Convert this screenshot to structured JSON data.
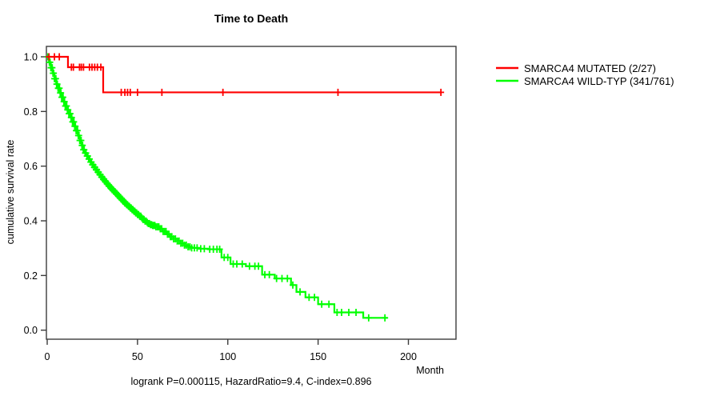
{
  "chart_data": {
    "type": "line",
    "subtype": "kaplan_meier_survival",
    "title": "Time to Death",
    "xlabel": "Month",
    "ylabel": "cumulative survival rate",
    "annotation": "logrank P=0.000115, HazardRatio=9.4, C-index=0.896",
    "x_ticks": [
      0,
      50,
      100,
      150,
      200
    ],
    "y_ticks": [
      0.0,
      0.2,
      0.4,
      0.6,
      0.8,
      1.0
    ],
    "xlim": [
      0,
      227
    ],
    "ylim": [
      0,
      1.04
    ],
    "grid": false,
    "legend_position": "right-outside",
    "series": [
      {
        "name": "SMARCA4 MUTATED (2/27)",
        "color": "#ff0000",
        "steps": [
          [
            0,
            1.0
          ],
          [
            11.5,
            0.962
          ],
          [
            31,
            0.87
          ],
          [
            218,
            0.87
          ]
        ],
        "censors": [
          1,
          4,
          6.7,
          13.4,
          14.5,
          17.9,
          18.9,
          20.1,
          23.4,
          24.8,
          26.3,
          27.8,
          29.7,
          41,
          43,
          44.5,
          46,
          50,
          63.5,
          97.3,
          161,
          218
        ]
      },
      {
        "name": "SMARCA4 WILD-TYP (341/761)",
        "color": "#00ff00",
        "steps": [
          [
            0,
            1.0
          ],
          [
            1,
            0.98
          ],
          [
            2,
            0.96
          ],
          [
            3,
            0.94
          ],
          [
            4,
            0.92
          ],
          [
            5,
            0.9
          ],
          [
            6,
            0.885
          ],
          [
            7,
            0.868
          ],
          [
            8,
            0.852
          ],
          [
            9,
            0.836
          ],
          [
            10,
            0.82
          ],
          [
            11,
            0.806
          ],
          [
            12,
            0.792
          ],
          [
            13,
            0.778
          ],
          [
            14,
            0.762
          ],
          [
            15,
            0.746
          ],
          [
            16,
            0.73
          ],
          [
            17,
            0.712
          ],
          [
            18,
            0.694
          ],
          [
            19,
            0.676
          ],
          [
            20,
            0.66
          ],
          [
            21,
            0.648
          ],
          [
            22,
            0.637
          ],
          [
            23,
            0.626
          ],
          [
            24,
            0.615
          ],
          [
            25,
            0.605
          ],
          [
            26,
            0.596
          ],
          [
            27,
            0.587
          ],
          [
            28,
            0.578
          ],
          [
            29,
            0.569
          ],
          [
            30,
            0.56
          ],
          [
            31,
            0.552
          ],
          [
            32,
            0.544
          ],
          [
            33,
            0.536
          ],
          [
            34,
            0.528
          ],
          [
            35,
            0.521
          ],
          [
            36,
            0.514
          ],
          [
            37,
            0.507
          ],
          [
            38,
            0.5
          ],
          [
            39,
            0.493
          ],
          [
            40,
            0.486
          ],
          [
            41,
            0.479
          ],
          [
            42,
            0.472
          ],
          [
            43,
            0.465
          ],
          [
            44,
            0.459
          ],
          [
            45,
            0.453
          ],
          [
            46,
            0.447
          ],
          [
            47,
            0.441
          ],
          [
            48,
            0.435
          ],
          [
            49,
            0.429
          ],
          [
            50,
            0.423
          ],
          [
            51,
            0.417
          ],
          [
            52,
            0.411
          ],
          [
            53,
            0.405
          ],
          [
            54,
            0.399
          ],
          [
            55,
            0.394
          ],
          [
            56,
            0.39
          ],
          [
            57,
            0.386
          ],
          [
            58,
            0.383
          ],
          [
            60,
            0.378
          ],
          [
            62,
            0.371
          ],
          [
            64,
            0.361
          ],
          [
            66,
            0.351
          ],
          [
            68,
            0.342
          ],
          [
            70,
            0.334
          ],
          [
            72,
            0.326
          ],
          [
            74,
            0.318
          ],
          [
            76,
            0.311
          ],
          [
            78,
            0.305
          ],
          [
            80,
            0.301
          ],
          [
            84,
            0.298
          ],
          [
            89,
            0.296
          ],
          [
            96.5,
            0.266
          ],
          [
            101.5,
            0.242
          ],
          [
            110,
            0.234
          ],
          [
            119,
            0.203
          ],
          [
            126,
            0.189
          ],
          [
            135,
            0.165
          ],
          [
            138,
            0.14
          ],
          [
            143,
            0.12
          ],
          [
            150,
            0.095
          ],
          [
            159,
            0.065
          ],
          [
            175,
            0.045
          ],
          [
            188.5,
            0.045
          ]
        ],
        "censors": [
          0.4,
          0.8,
          1.2,
          1.6,
          2,
          2.4,
          2.8,
          3.2,
          3.6,
          4,
          4.4,
          4.8,
          5.2,
          5.6,
          6,
          6.4,
          6.8,
          7.2,
          7.6,
          8,
          8.4,
          8.8,
          9.2,
          9.6,
          10,
          10.4,
          10.8,
          11.2,
          11.6,
          12,
          12.4,
          12.8,
          13.2,
          13.6,
          14,
          14.4,
          14.8,
          15.2,
          15.6,
          16,
          16.4,
          16.8,
          17.2,
          17.6,
          18,
          18.4,
          18.8,
          19.2,
          19.6,
          20,
          20.5,
          21,
          21.5,
          22,
          22.5,
          23,
          23.5,
          24,
          24.5,
          25,
          25.5,
          26,
          26.5,
          27,
          27.5,
          28,
          28.5,
          29,
          29.5,
          30,
          30.5,
          31,
          31.5,
          32,
          32.5,
          33,
          33.5,
          34,
          34.5,
          35,
          35.5,
          36,
          36.5,
          37,
          37.5,
          38,
          38.5,
          39,
          39.5,
          40,
          40.5,
          41,
          41.5,
          42,
          42.5,
          43,
          43.5,
          44,
          44.5,
          45,
          45.5,
          46,
          46.5,
          47,
          47.5,
          48,
          48.5,
          49,
          49.5,
          50,
          50.6,
          51.2,
          51.8,
          52.4,
          53,
          53.6,
          54.2,
          54.8,
          55.4,
          56,
          56.6,
          57.2,
          57.8,
          58.4,
          59,
          59.6,
          60.2,
          61,
          61.8,
          62.6,
          63.4,
          64.2,
          65,
          65.8,
          66.6,
          67.4,
          68.2,
          69,
          70,
          71,
          72,
          73,
          74,
          75,
          76,
          77,
          78,
          79,
          80,
          81.5,
          83,
          85,
          87,
          90,
          92,
          94,
          95.5,
          98,
          100,
          103,
          105,
          108,
          112,
          115,
          117,
          120.5,
          123,
          127,
          130,
          133,
          136,
          140,
          145,
          148,
          152,
          156,
          160.5,
          163,
          167,
          171,
          178,
          187
        ]
      }
    ]
  }
}
